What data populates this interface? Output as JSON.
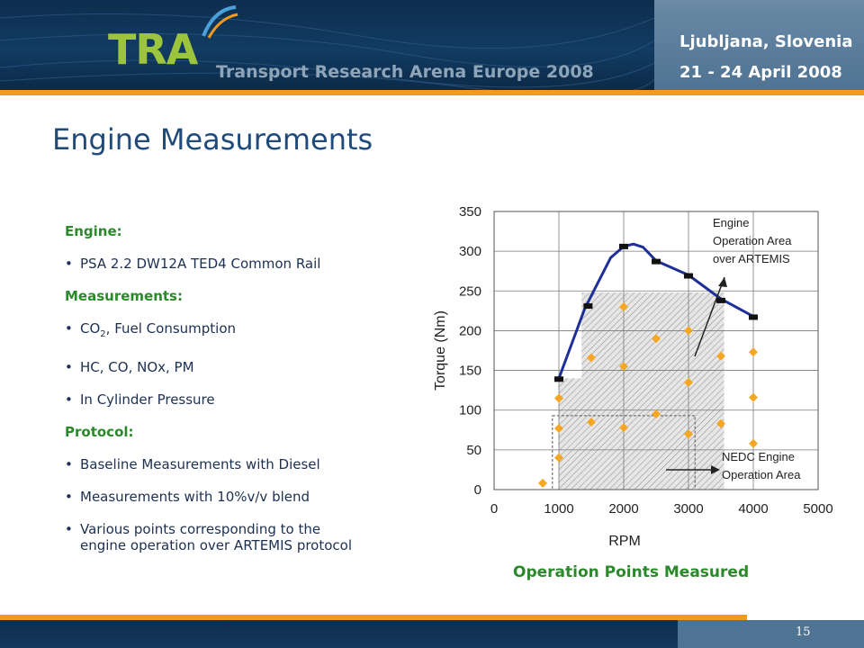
{
  "header": {
    "logo_text": "TRA",
    "subtitle": "Transport Research Arena Europe 2008",
    "city": "Ljubljana, Slovenia",
    "dates": "21 - 24 April 2008"
  },
  "slide": {
    "title": "Engine Measurements",
    "engine_header": "Engine:",
    "engine_item": "PSA 2.2 DW12A TED4 Common Rail",
    "measurements_header": "Measurements:",
    "measurements_items": [
      "CO",
      "HC, CO, NOx, PM",
      "In Cylinder Pressure"
    ],
    "co2_subscript": "2",
    "co2_rest": ", Fuel Consumption",
    "protocol_header": "Protocol:",
    "protocol_items": [
      "Baseline Measurements with Diesel",
      "Measurements with 10%v/v blend",
      "Various points corresponding to the engine operation over ARTEMIS protocol"
    ],
    "caption": "Operation Points Measured",
    "page_number": "15"
  },
  "colors": {
    "header_bg": "#123c63",
    "accent_orange": "#f29a1d",
    "title_blue": "#1f4a7a",
    "green": "#2a8a2a",
    "curve_blue": "#1f2f9a",
    "point_orange": "#f5a623"
  },
  "chart_data": {
    "type": "scatter",
    "xlabel": "RPM",
    "ylabel": "Torque (Nm)",
    "xlim": [
      0,
      5000
    ],
    "ylim": [
      0,
      350
    ],
    "xticks": [
      "0",
      "1000",
      "2000",
      "3000",
      "4000",
      "5000"
    ],
    "yticks": [
      "0",
      "50",
      "100",
      "150",
      "200",
      "250",
      "300",
      "350"
    ],
    "grid": true,
    "series": [
      {
        "kind": "curve",
        "points": [
          [
            1000,
            140
          ],
          [
            1400,
            228
          ],
          [
            1800,
            292
          ],
          [
            2000,
            306
          ],
          [
            2150,
            309
          ],
          [
            2300,
            305
          ],
          [
            2500,
            288
          ],
          [
            3000,
            270
          ],
          [
            3500,
            240
          ],
          [
            4000,
            218
          ]
        ],
        "markers": [
          [
            1000,
            139
          ],
          [
            1450,
            231
          ],
          [
            2000,
            306
          ],
          [
            2500,
            287
          ],
          [
            3000,
            269
          ],
          [
            3500,
            238
          ],
          [
            4000,
            217
          ]
        ]
      },
      {
        "kind": "points",
        "points": [
          [
            750,
            8
          ],
          [
            1000,
            40
          ],
          [
            1000,
            77
          ],
          [
            1000,
            115
          ],
          [
            1500,
            85
          ],
          [
            1500,
            166
          ],
          [
            2000,
            78
          ],
          [
            2000,
            155
          ],
          [
            2000,
            230
          ],
          [
            2500,
            95
          ],
          [
            2500,
            190
          ],
          [
            3000,
            70
          ],
          [
            3000,
            135
          ],
          [
            3000,
            200
          ],
          [
            3500,
            83
          ],
          [
            3500,
            168
          ],
          [
            4000,
            58
          ],
          [
            4000,
            116
          ],
          [
            4000,
            173
          ]
        ]
      }
    ],
    "annotations": [
      {
        "text": "Engine",
        "text2": "Operation Area",
        "text3": "over ARTEMIS"
      },
      {
        "text": "NEDC Engine",
        "text2": "Operation Area"
      }
    ]
  }
}
